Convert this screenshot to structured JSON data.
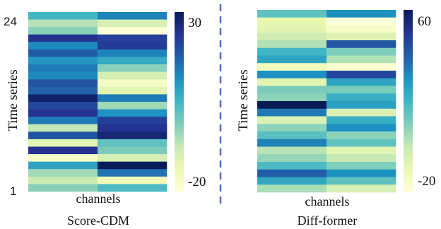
{
  "colors": {
    "divider": "#4472c4",
    "scale": [
      "#ffffd9",
      "#edf8b1",
      "#c7e9b4",
      "#7fcdbb",
      "#41b6c4",
      "#1d91c0",
      "#225ea8",
      "#253494",
      "#081d58"
    ]
  },
  "chart_data": [
    {
      "type": "heatmap",
      "title": "Score-CDM",
      "xlabel": "channels",
      "ylabel": "Time series",
      "y_tick_labels": [
        "24",
        "1"
      ],
      "colorbar": {
        "min": -20,
        "max": 30,
        "tick_labels": [
          "30",
          "-20"
        ]
      },
      "columns": 2,
      "rows_top_to_bottom": [
        [
          5,
          13
        ],
        [
          -6,
          -10
        ],
        [
          -2,
          -20
        ],
        [
          24,
          22
        ],
        [
          12,
          23
        ],
        [
          18,
          13
        ],
        [
          10,
          7
        ],
        [
          14,
          -2
        ],
        [
          12,
          -10
        ],
        [
          19,
          -17
        ],
        [
          17,
          -12
        ],
        [
          28,
          14
        ],
        [
          21,
          -4
        ],
        [
          24,
          11
        ],
        [
          14,
          22
        ],
        [
          -7,
          24
        ],
        [
          19,
          27
        ],
        [
          -12,
          2
        ],
        [
          24,
          -1
        ],
        [
          -17,
          -10
        ],
        [
          8,
          30
        ],
        [
          -4,
          15
        ],
        [
          -8,
          -15
        ],
        [
          -2,
          4
        ]
      ]
    },
    {
      "type": "heatmap",
      "title": "Diff-former",
      "xlabel": "channels",
      "ylabel": "Time series",
      "colorbar": {
        "min": -20,
        "max": 60,
        "tick_labels": [
          "60",
          "-20"
        ]
      },
      "columns": 2,
      "rows_top_to_bottom": [
        [
          15,
          30
        ],
        [
          -9,
          -20
        ],
        [
          -7,
          -16
        ],
        [
          -2,
          -6
        ],
        [
          3,
          42
        ],
        [
          20,
          10
        ],
        [
          25,
          3
        ],
        [
          -13,
          -18
        ],
        [
          30,
          46
        ],
        [
          -7,
          25
        ],
        [
          11,
          11
        ],
        [
          8,
          22
        ],
        [
          60,
          26
        ],
        [
          35,
          -5
        ],
        [
          -5,
          22
        ],
        [
          8,
          30
        ],
        [
          16,
          8
        ],
        [
          33,
          15
        ],
        [
          2,
          -6
        ],
        [
          7,
          0
        ],
        [
          18,
          10
        ],
        [
          40,
          30
        ],
        [
          24,
          15
        ],
        [
          4,
          -4
        ]
      ]
    }
  ]
}
